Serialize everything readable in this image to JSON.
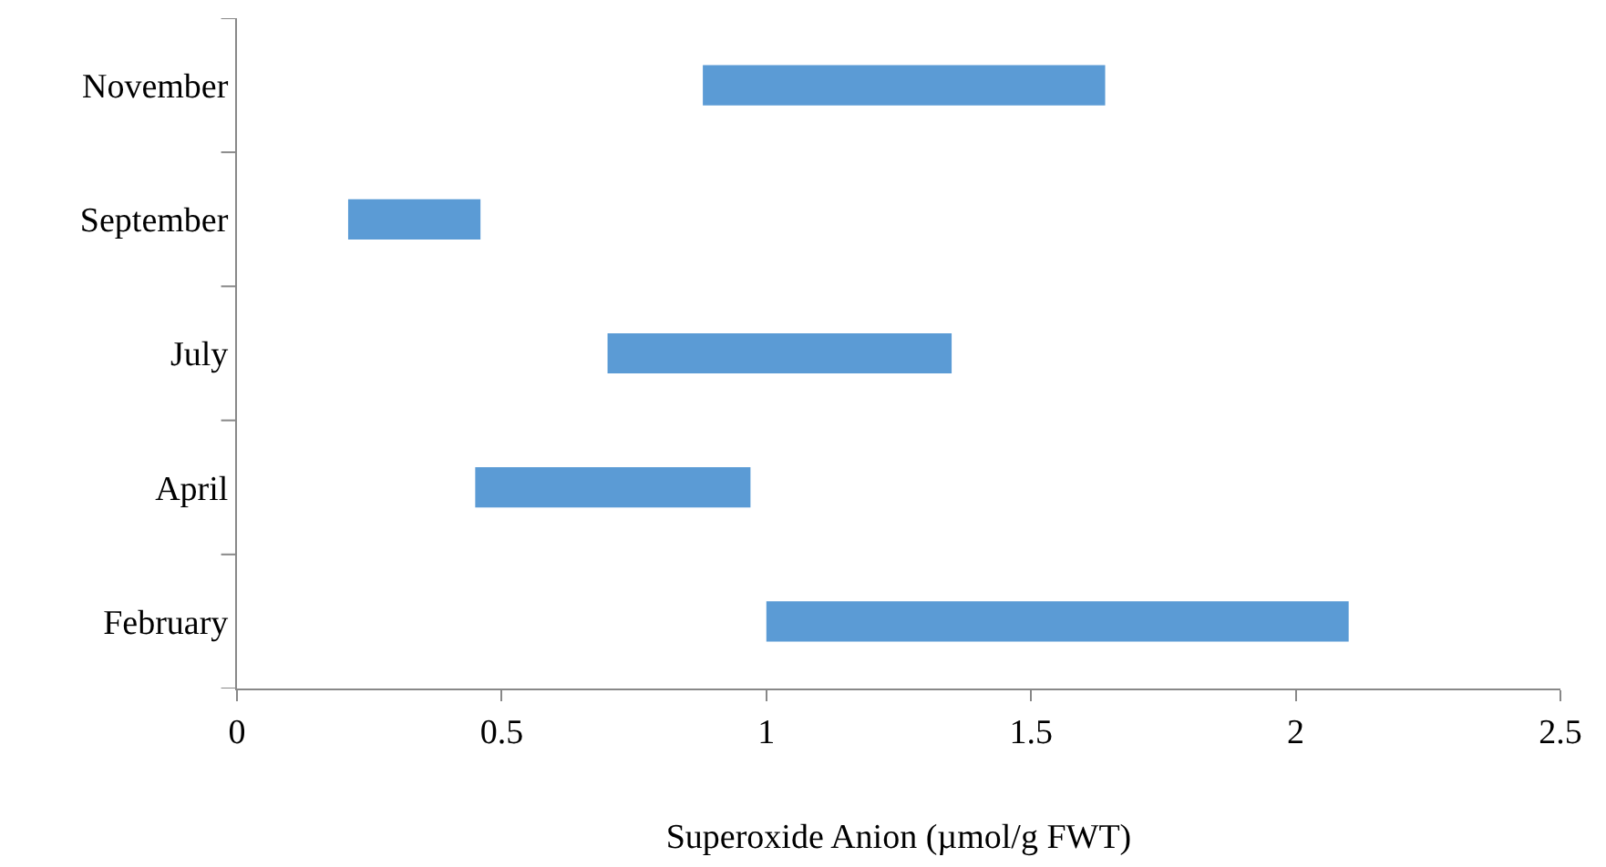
{
  "chart_data": {
    "type": "bar",
    "orientation": "horizontal",
    "xlabel": "Superoxide Anion (µmol/g FWT)",
    "categories": [
      "November",
      "September",
      "July",
      "April",
      "February"
    ],
    "base": [
      0.88,
      0.21,
      0.7,
      0.45,
      1.0
    ],
    "values": [
      0.76,
      0.25,
      0.65,
      0.52,
      1.1
    ],
    "color": "#5b9bd5",
    "xlim": [
      0,
      2.5
    ],
    "xticks": [
      0,
      0.5,
      1,
      1.5,
      2,
      2.5
    ]
  }
}
